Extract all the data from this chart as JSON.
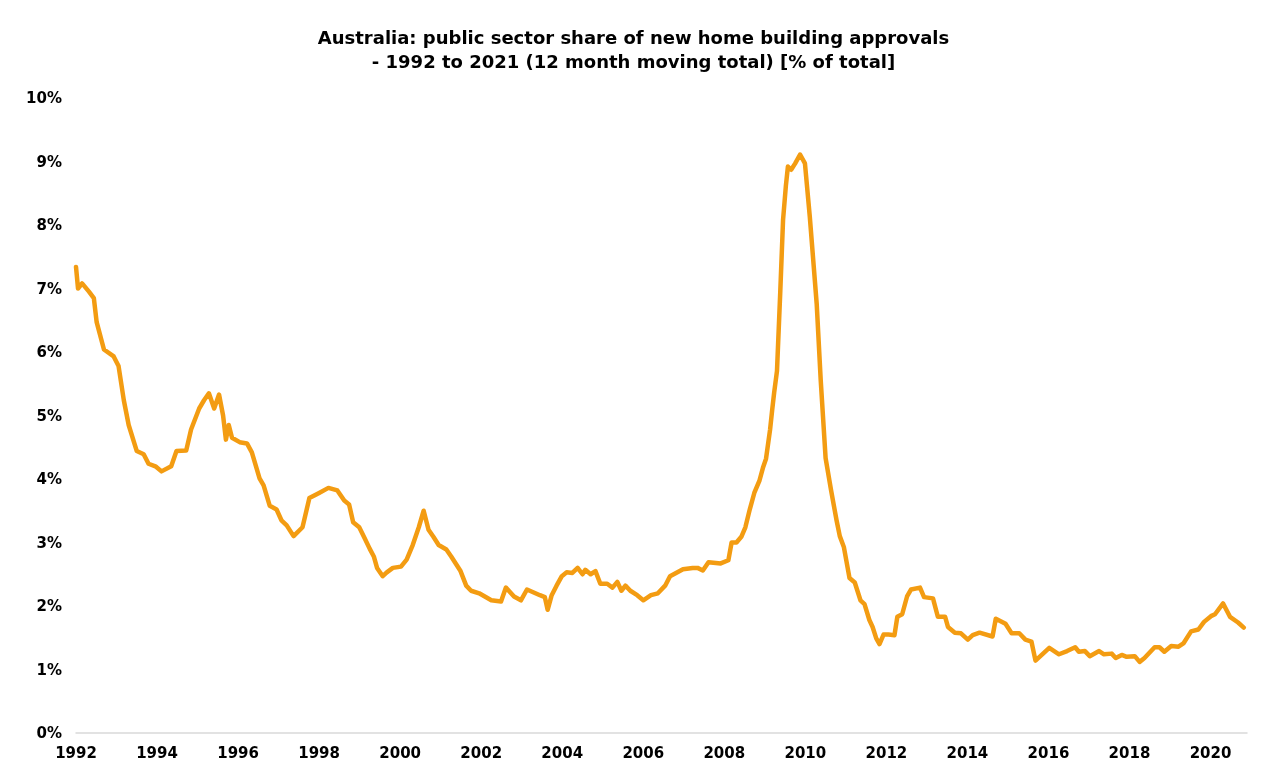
{
  "chart_data": {
    "type": "line",
    "title": "Australia: public sector share of new home building approvals\n- 1992 to 2021 (12 month moving total) [% of total]",
    "series": [
      {
        "color": "#f39c12",
        "x": [
          1992.0,
          1992.05,
          1992.15,
          1992.32,
          1992.44,
          1992.51,
          1992.69,
          1992.93,
          1993.05,
          1993.18,
          1993.3,
          1993.5,
          1993.67,
          1993.79,
          1993.96,
          1994.11,
          1994.35,
          1994.48,
          1994.72,
          1994.84,
          1995.04,
          1995.16,
          1995.28,
          1995.41,
          1995.53,
          1995.63,
          1995.7,
          1995.77,
          1995.85,
          1996.04,
          1996.22,
          1996.34,
          1996.53,
          1996.63,
          1996.78,
          1996.95,
          1997.07,
          1997.2,
          1997.37,
          1997.59,
          1997.76,
          1998.0,
          1998.23,
          1998.45,
          1998.62,
          1998.74,
          1998.84,
          1998.99,
          1999.13,
          1999.25,
          1999.35,
          1999.43,
          1999.57,
          1999.67,
          1999.82,
          2000.02,
          2000.16,
          2000.31,
          2000.46,
          2000.58,
          2000.7,
          2000.82,
          2000.95,
          2001.14,
          2001.26,
          2001.49,
          2001.63,
          2001.75,
          2001.95,
          2002.25,
          2002.49,
          2002.61,
          2002.81,
          2002.98,
          2003.13,
          2003.45,
          2003.57,
          2003.64,
          2003.74,
          2003.86,
          2003.99,
          2004.11,
          2004.25,
          2004.38,
          2004.5,
          2004.57,
          2004.7,
          2004.82,
          2004.94,
          2005.11,
          2005.24,
          2005.36,
          2005.46,
          2005.56,
          2005.68,
          2005.85,
          2006.0,
          2006.19,
          2006.36,
          2006.54,
          2006.66,
          2006.98,
          2007.22,
          2007.34,
          2007.47,
          2007.61,
          2007.91,
          2008.1,
          2008.18,
          2008.3,
          2008.42,
          2008.52,
          2008.62,
          2008.74,
          2008.87,
          2008.96,
          2009.03,
          2009.13,
          2009.18,
          2009.23,
          2009.3,
          2009.38,
          2009.45,
          2009.52,
          2009.57,
          2009.65,
          2009.75,
          2009.87,
          2009.99,
          2010.11,
          2010.28,
          2010.38,
          2010.5,
          2010.63,
          2010.77,
          2010.85,
          2010.95,
          2011.09,
          2011.22,
          2011.36,
          2011.46,
          2011.58,
          2011.66,
          2011.75,
          2011.83,
          2011.93,
          2012.05,
          2012.2,
          2012.27,
          2012.39,
          2012.51,
          2012.61,
          2012.83,
          2012.93,
          2013.15,
          2013.27,
          2013.45,
          2013.52,
          2013.69,
          2013.84,
          2014.01,
          2014.13,
          2014.3,
          2014.62,
          2014.7,
          2014.94,
          2015.09,
          2015.28,
          2015.43,
          2015.58,
          2015.68,
          2015.8,
          2016.02,
          2016.26,
          2016.46,
          2016.66,
          2016.75,
          2016.9,
          2017.02,
          2017.25,
          2017.37,
          2017.56,
          2017.66,
          2017.81,
          2017.93,
          2018.13,
          2018.25,
          2018.37,
          2018.62,
          2018.74,
          2018.86,
          2019.03,
          2019.21,
          2019.33,
          2019.52,
          2019.7,
          2019.84,
          2020.01,
          2020.11,
          2020.31,
          2020.48,
          2020.68,
          2020.82
        ],
        "values": [
          7.34,
          7.0,
          7.08,
          6.95,
          6.85,
          6.47,
          6.04,
          5.93,
          5.78,
          5.24,
          4.85,
          4.44,
          4.39,
          4.24,
          4.2,
          4.12,
          4.2,
          4.44,
          4.45,
          4.78,
          5.11,
          5.24,
          5.35,
          5.11,
          5.33,
          5.0,
          4.62,
          4.85,
          4.65,
          4.58,
          4.56,
          4.42,
          4.01,
          3.9,
          3.58,
          3.52,
          3.35,
          3.27,
          3.1,
          3.24,
          3.7,
          3.78,
          3.86,
          3.82,
          3.66,
          3.6,
          3.32,
          3.24,
          3.06,
          2.9,
          2.78,
          2.6,
          2.47,
          2.53,
          2.6,
          2.62,
          2.73,
          2.96,
          3.24,
          3.5,
          3.2,
          3.09,
          2.96,
          2.89,
          2.78,
          2.55,
          2.32,
          2.24,
          2.2,
          2.09,
          2.07,
          2.29,
          2.15,
          2.09,
          2.26,
          2.17,
          2.14,
          1.94,
          2.17,
          2.32,
          2.47,
          2.53,
          2.52,
          2.6,
          2.5,
          2.57,
          2.5,
          2.55,
          2.35,
          2.35,
          2.29,
          2.38,
          2.24,
          2.32,
          2.24,
          2.17,
          2.09,
          2.17,
          2.2,
          2.32,
          2.47,
          2.58,
          2.6,
          2.6,
          2.56,
          2.69,
          2.67,
          2.72,
          3.0,
          3.0,
          3.09,
          3.24,
          3.5,
          3.78,
          3.98,
          4.19,
          4.32,
          4.78,
          5.08,
          5.36,
          5.7,
          6.93,
          8.08,
          8.62,
          8.92,
          8.87,
          8.97,
          9.11,
          8.97,
          8.13,
          6.76,
          5.55,
          4.33,
          3.84,
          3.35,
          3.1,
          2.93,
          2.44,
          2.37,
          2.09,
          2.03,
          1.78,
          1.67,
          1.49,
          1.4,
          1.55,
          1.55,
          1.54,
          1.83,
          1.87,
          2.15,
          2.26,
          2.29,
          2.14,
          2.12,
          1.83,
          1.83,
          1.67,
          1.58,
          1.57,
          1.47,
          1.54,
          1.58,
          1.52,
          1.8,
          1.72,
          1.57,
          1.57,
          1.47,
          1.44,
          1.14,
          1.21,
          1.34,
          1.24,
          1.29,
          1.35,
          1.28,
          1.29,
          1.21,
          1.29,
          1.24,
          1.25,
          1.18,
          1.23,
          1.2,
          1.21,
          1.12,
          1.18,
          1.35,
          1.35,
          1.28,
          1.37,
          1.36,
          1.41,
          1.6,
          1.63,
          1.75,
          1.84,
          1.87,
          2.04,
          1.83,
          1.74,
          1.66
        ]
      }
    ],
    "xlim": [
      1992,
      2020.9
    ],
    "xticks": [
      1992,
      1994,
      1996,
      1998,
      2000,
      2002,
      2004,
      2006,
      2008,
      2010,
      2012,
      2014,
      2016,
      2018,
      2020
    ],
    "ylim": [
      0,
      10
    ],
    "yticks": [
      {
        "value": 0,
        "label": "0%"
      },
      {
        "value": 1,
        "label": "1%"
      },
      {
        "value": 2,
        "label": "2%"
      },
      {
        "value": 3,
        "label": "3%"
      },
      {
        "value": 4,
        "label": "4%"
      },
      {
        "value": 5,
        "label": "5%"
      },
      {
        "value": 6,
        "label": "6%"
      },
      {
        "value": 7,
        "label": "7%"
      },
      {
        "value": 8,
        "label": "8%"
      },
      {
        "value": 9,
        "label": "9%"
      },
      {
        "value": 10,
        "label": "10%"
      }
    ],
    "grid": false,
    "marker": "none",
    "line_style": "solid"
  }
}
